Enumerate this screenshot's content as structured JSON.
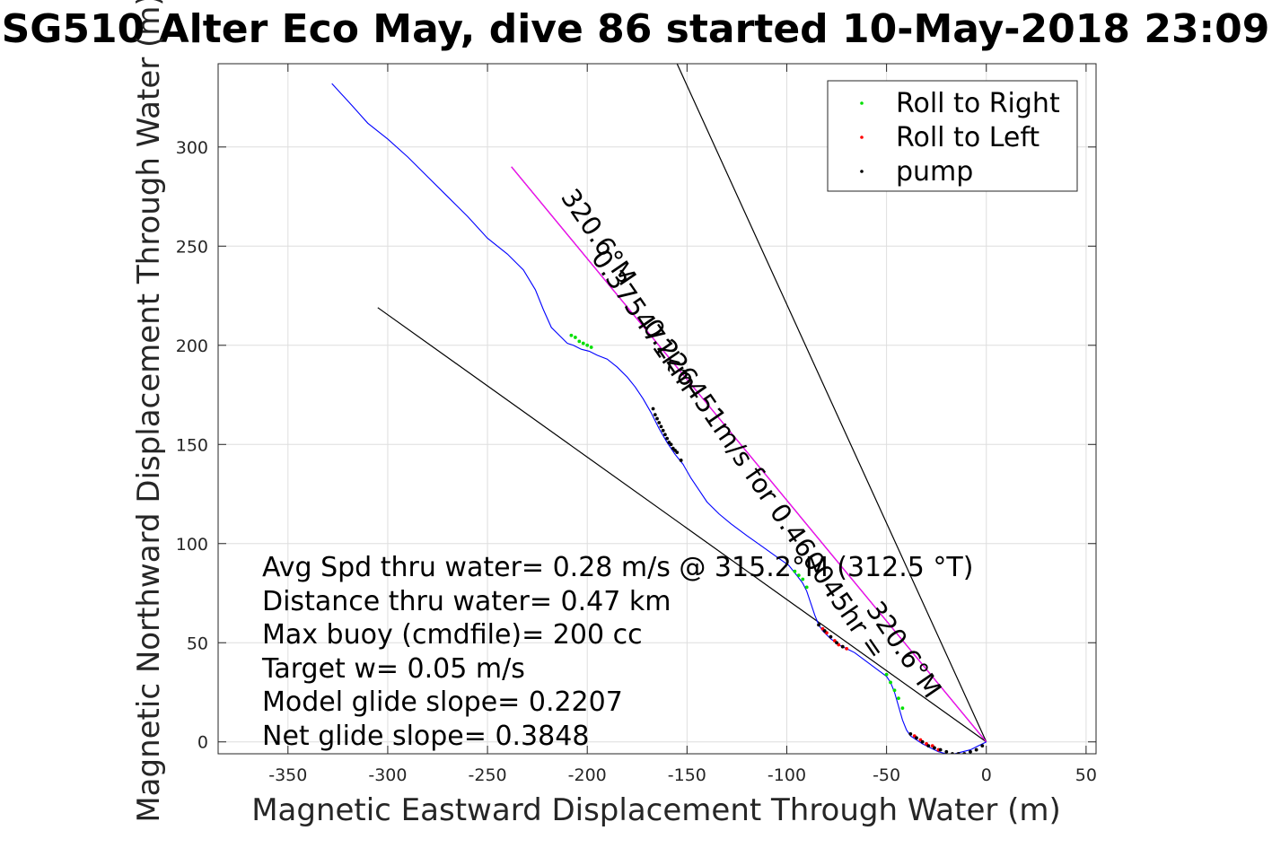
{
  "chart_data": {
    "type": "line",
    "title": "SG510 Alter Eco May, dive 86 started 10-May-2018 23:09",
    "xlabel": "Magnetic Eastward Displacement Through Water (m)",
    "ylabel": "Magnetic Northward Displacement Through Water (m)",
    "xlim": [
      -385,
      55
    ],
    "ylim": [
      -6,
      342
    ],
    "xticks": [
      -350,
      -300,
      -250,
      -200,
      -150,
      -100,
      -50,
      0,
      50
    ],
    "yticks": [
      0,
      50,
      100,
      150,
      200,
      250,
      300
    ],
    "grid": true,
    "legend_position": "top-right",
    "legend": [
      {
        "label": "Roll to Right",
        "color": "#00e000"
      },
      {
        "label": "Roll to Left",
        "color": "#ff0000"
      },
      {
        "label": "pump",
        "color": "#000000"
      }
    ],
    "track": {
      "color": "#0000ff",
      "x": [
        -328,
        -318,
        -310,
        -300,
        -290,
        -280,
        -270,
        -260,
        -250,
        -240,
        -232,
        -226,
        -222,
        -218,
        -214,
        -212,
        -210,
        -207,
        -203,
        -199,
        -195,
        -190,
        -185,
        -180,
        -176,
        -172,
        -168,
        -164,
        -160,
        -156,
        -152,
        -148,
        -144,
        -140,
        -134,
        -128,
        -120,
        -113,
        -106,
        -99,
        -95,
        -92,
        -90,
        -88,
        -86,
        -84,
        -82,
        -78,
        -74,
        -70,
        -66,
        -62,
        -58,
        -54,
        -50,
        -48,
        -46,
        -44,
        -42,
        -40,
        -38,
        -35,
        -32,
        -28,
        -24,
        -20,
        -16,
        -12,
        -8,
        -4,
        -2,
        0
      ],
      "y": [
        332,
        321,
        312,
        304,
        295,
        285,
        275,
        265,
        254,
        246,
        238,
        228,
        218,
        209,
        205,
        203,
        201,
        200,
        198,
        197,
        195,
        193,
        189,
        184,
        179,
        173,
        166,
        158,
        151,
        145,
        140,
        133,
        127,
        121,
        115,
        110,
        104,
        99,
        94,
        89,
        84,
        80,
        76,
        70,
        64,
        59,
        56,
        52,
        49,
        47,
        45,
        42,
        39,
        36,
        33,
        30,
        25,
        18,
        11,
        6,
        3,
        1,
        -1,
        -3,
        -5,
        -6,
        -6,
        -5,
        -4,
        -2,
        -1,
        0
      ]
    },
    "heading_lines": [
      {
        "color": "#000000",
        "x": [
          -305,
          0
        ],
        "y": [
          219,
          0
        ]
      },
      {
        "color": "#000000",
        "x": [
          -155,
          0
        ],
        "y": [
          342,
          0
        ]
      },
      {
        "color": "#000000",
        "x": [
          -238,
          0
        ],
        "y": [
          290,
          0
        ]
      },
      {
        "color": "#ff00ff",
        "x": [
          -238,
          0
        ],
        "y": [
          290,
          0
        ]
      }
    ],
    "roll_right_points": {
      "color": "#00e000",
      "x": [
        -208,
        -206,
        -204,
        -202,
        -200,
        -198,
        -96,
        -94,
        -92,
        -90,
        -50,
        -48,
        -46,
        -44,
        -42
      ],
      "y": [
        205,
        204,
        202,
        201,
        200,
        199,
        86,
        84,
        82,
        78,
        34,
        30,
        26,
        22,
        17
      ]
    },
    "roll_left_points": {
      "color": "#ff0000",
      "x": [
        -82,
        -80,
        -78,
        -76,
        -74,
        -72,
        -70,
        -36,
        -33,
        -30,
        -27,
        -24
      ],
      "y": [
        57,
        55,
        53,
        51,
        49,
        48,
        47,
        3,
        1,
        -1,
        -2,
        -4
      ]
    },
    "pump_points": {
      "color": "#000000",
      "x": [
        -167,
        -166,
        -165,
        -164,
        -163,
        -162,
        -161,
        -160,
        -159,
        -158,
        -157,
        -156,
        -155,
        -153,
        -84,
        -81,
        -78,
        -75,
        -72,
        -38,
        -35,
        -32,
        -29,
        -26,
        -23,
        -20,
        -17,
        -14,
        -11,
        -8,
        -5,
        -2
      ],
      "y": [
        168,
        165,
        163,
        161,
        159,
        157,
        155,
        153,
        151,
        150,
        148,
        147,
        146,
        142,
        59,
        56,
        53,
        50,
        48,
        4,
        2,
        0,
        -2,
        -3,
        -4,
        -5,
        -6,
        -6,
        -6,
        -5,
        -4,
        -2
      ]
    },
    "annotations": [
      {
        "text": "320.6°M",
        "x": -198,
        "y": 252,
        "rotation": 55.5
      },
      {
        "text": "0.375471km",
        "x": -175,
        "y": 210,
        "rotation": 55.5
      },
      {
        "text": "0.226451m/s for 0.460045hr =",
        "x": -115,
        "y": 125,
        "rotation": 55.5
      },
      {
        "text": "320.6°M",
        "x": -45,
        "y": 44,
        "rotation": 55.5
      }
    ],
    "stats_text": [
      "Avg Spd thru water=  0.28 m/s @ 315.2°M (312.5 °T)",
      "Distance thru water=  0.47 km",
      "Max buoy (cmdfile)= 200 cc",
      "Target w= 0.05 m/s",
      "Model glide slope= 0.2207",
      "Net glide slope= 0.3848"
    ]
  }
}
